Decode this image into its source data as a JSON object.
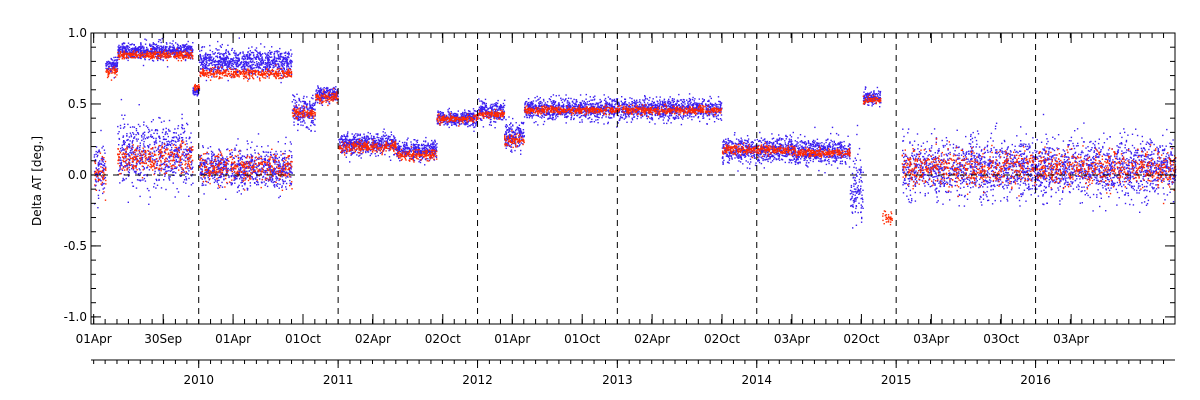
{
  "chart_data": {
    "type": "scatter",
    "title": "",
    "ylabel": "Delta AT [deg.]",
    "xlabel": "",
    "ylim": [
      -1.05,
      1.0
    ],
    "xlim": [
      "2009-03-25",
      "2016-12-31"
    ],
    "yticks": [
      -1.0,
      -0.5,
      0.0,
      0.5,
      1.0
    ],
    "ytick_labels": [
      "-1.0",
      "-0.5",
      "0.0",
      "0.5",
      "1.0"
    ],
    "xticks": [
      {
        "date": "2009-04-01",
        "label": "01Apr"
      },
      {
        "date": "2009-09-30",
        "label": "30Sep"
      },
      {
        "date": "2010-04-01",
        "label": "01Apr"
      },
      {
        "date": "2010-10-01",
        "label": "01Oct"
      },
      {
        "date": "2011-04-02",
        "label": "02Apr"
      },
      {
        "date": "2011-10-02",
        "label": "02Oct"
      },
      {
        "date": "2012-04-01",
        "label": "01Apr"
      },
      {
        "date": "2012-10-01",
        "label": "01Oct"
      },
      {
        "date": "2013-04-02",
        "label": "02Apr"
      },
      {
        "date": "2013-10-02",
        "label": "02Oct"
      },
      {
        "date": "2014-04-03",
        "label": "03Apr"
      },
      {
        "date": "2014-10-02",
        "label": "02Oct"
      },
      {
        "date": "2015-04-03",
        "label": "03Apr"
      },
      {
        "date": "2015-10-03",
        "label": "03Oct"
      },
      {
        "date": "2016-04-03",
        "label": "03Apr"
      }
    ],
    "year_labels": [
      {
        "date": "2010-01-01",
        "label": "2010"
      },
      {
        "date": "2011-01-01",
        "label": "2011"
      },
      {
        "date": "2012-01-01",
        "label": "2012"
      },
      {
        "date": "2013-01-01",
        "label": "2013"
      },
      {
        "date": "2014-01-01",
        "label": "2014"
      },
      {
        "date": "2015-01-01",
        "label": "2015"
      },
      {
        "date": "2016-01-01",
        "label": "2016"
      }
    ],
    "year_boundaries": [
      "2010-01-01",
      "2011-01-01",
      "2012-01-01",
      "2013-01-01",
      "2014-01-01",
      "2015-01-01",
      "2016-01-01"
    ],
    "zero_line": 0.0,
    "series": [
      {
        "color": "#3a1ff0",
        "segments": [
          {
            "from": "2009-04-01",
            "to": "2009-05-01",
            "center": 0.05,
            "spread": 0.2
          },
          {
            "from": "2009-05-01",
            "to": "2009-06-01",
            "center": 0.78,
            "spread": 0.05
          },
          {
            "from": "2009-06-01",
            "to": "2009-12-15",
            "center": 0.88,
            "spread": 0.06
          },
          {
            "from": "2009-06-01",
            "to": "2009-12-15",
            "center": 0.15,
            "spread": 0.25
          },
          {
            "from": "2009-12-15",
            "to": "2010-01-01",
            "center": 0.6,
            "spread": 0.03
          },
          {
            "from": "2010-01-01",
            "to": "2010-09-01",
            "center": 0.8,
            "spread": 0.1
          },
          {
            "from": "2010-01-01",
            "to": "2010-09-01",
            "center": 0.05,
            "spread": 0.15
          },
          {
            "from": "2010-09-01",
            "to": "2010-11-01",
            "center": 0.45,
            "spread": 0.12
          },
          {
            "from": "2010-11-01",
            "to": "2010-12-31",
            "center": 0.57,
            "spread": 0.06
          },
          {
            "from": "2011-01-01",
            "to": "2011-06-01",
            "center": 0.22,
            "spread": 0.08
          },
          {
            "from": "2011-06-01",
            "to": "2011-09-15",
            "center": 0.18,
            "spread": 0.07
          },
          {
            "from": "2011-09-15",
            "to": "2011-12-31",
            "center": 0.4,
            "spread": 0.06
          },
          {
            "from": "2012-01-01",
            "to": "2012-03-10",
            "center": 0.45,
            "spread": 0.08
          },
          {
            "from": "2012-03-10",
            "to": "2012-05-01",
            "center": 0.28,
            "spread": 0.1
          },
          {
            "from": "2012-05-01",
            "to": "2013-09-30",
            "center": 0.47,
            "spread": 0.08
          },
          {
            "from": "2013-10-01",
            "to": "2014-04-10",
            "center": 0.18,
            "spread": 0.1
          },
          {
            "from": "2014-04-10",
            "to": "2014-09-01",
            "center": 0.17,
            "spread": 0.1
          },
          {
            "from": "2014-09-01",
            "to": "2014-10-05",
            "center": -0.1,
            "spread": 0.3
          },
          {
            "from": "2014-10-05",
            "to": "2014-11-20",
            "center": 0.55,
            "spread": 0.05
          },
          {
            "from": "2015-01-15",
            "to": "2016-12-31",
            "center": 0.05,
            "spread": 0.22
          }
        ]
      },
      {
        "color": "#ff2a00",
        "segments": [
          {
            "from": "2009-04-01",
            "to": "2009-05-01",
            "center": 0.0,
            "spread": 0.15
          },
          {
            "from": "2009-05-01",
            "to": "2009-06-01",
            "center": 0.73,
            "spread": 0.04
          },
          {
            "from": "2009-06-01",
            "to": "2009-12-15",
            "center": 0.85,
            "spread": 0.03
          },
          {
            "from": "2009-06-01",
            "to": "2009-12-15",
            "center": 0.12,
            "spread": 0.12
          },
          {
            "from": "2009-12-15",
            "to": "2010-01-01",
            "center": 0.62,
            "spread": 0.02
          },
          {
            "from": "2010-01-01",
            "to": "2010-09-01",
            "center": 0.72,
            "spread": 0.04
          },
          {
            "from": "2010-01-01",
            "to": "2010-09-01",
            "center": 0.05,
            "spread": 0.12
          },
          {
            "from": "2010-09-01",
            "to": "2010-11-01",
            "center": 0.44,
            "spread": 0.04
          },
          {
            "from": "2010-11-01",
            "to": "2010-12-31",
            "center": 0.55,
            "spread": 0.04
          },
          {
            "from": "2011-01-01",
            "to": "2011-06-01",
            "center": 0.2,
            "spread": 0.05
          },
          {
            "from": "2011-06-01",
            "to": "2011-09-15",
            "center": 0.15,
            "spread": 0.04
          },
          {
            "from": "2011-09-15",
            "to": "2011-12-31",
            "center": 0.4,
            "spread": 0.03
          },
          {
            "from": "2012-01-01",
            "to": "2012-03-10",
            "center": 0.43,
            "spread": 0.03
          },
          {
            "from": "2012-03-10",
            "to": "2012-05-01",
            "center": 0.25,
            "spread": 0.05
          },
          {
            "from": "2012-05-01",
            "to": "2013-09-30",
            "center": 0.46,
            "spread": 0.03
          },
          {
            "from": "2013-10-01",
            "to": "2014-04-10",
            "center": 0.18,
            "spread": 0.04
          },
          {
            "from": "2014-04-10",
            "to": "2014-09-01",
            "center": 0.16,
            "spread": 0.03
          },
          {
            "from": "2014-10-05",
            "to": "2014-11-20",
            "center": 0.53,
            "spread": 0.03
          },
          {
            "from": "2014-11-25",
            "to": "2014-12-20",
            "center": -0.3,
            "spread": 0.05
          },
          {
            "from": "2015-01-15",
            "to": "2016-12-31",
            "center": 0.05,
            "spread": 0.15
          }
        ]
      }
    ],
    "grid": false,
    "legend": "none"
  }
}
